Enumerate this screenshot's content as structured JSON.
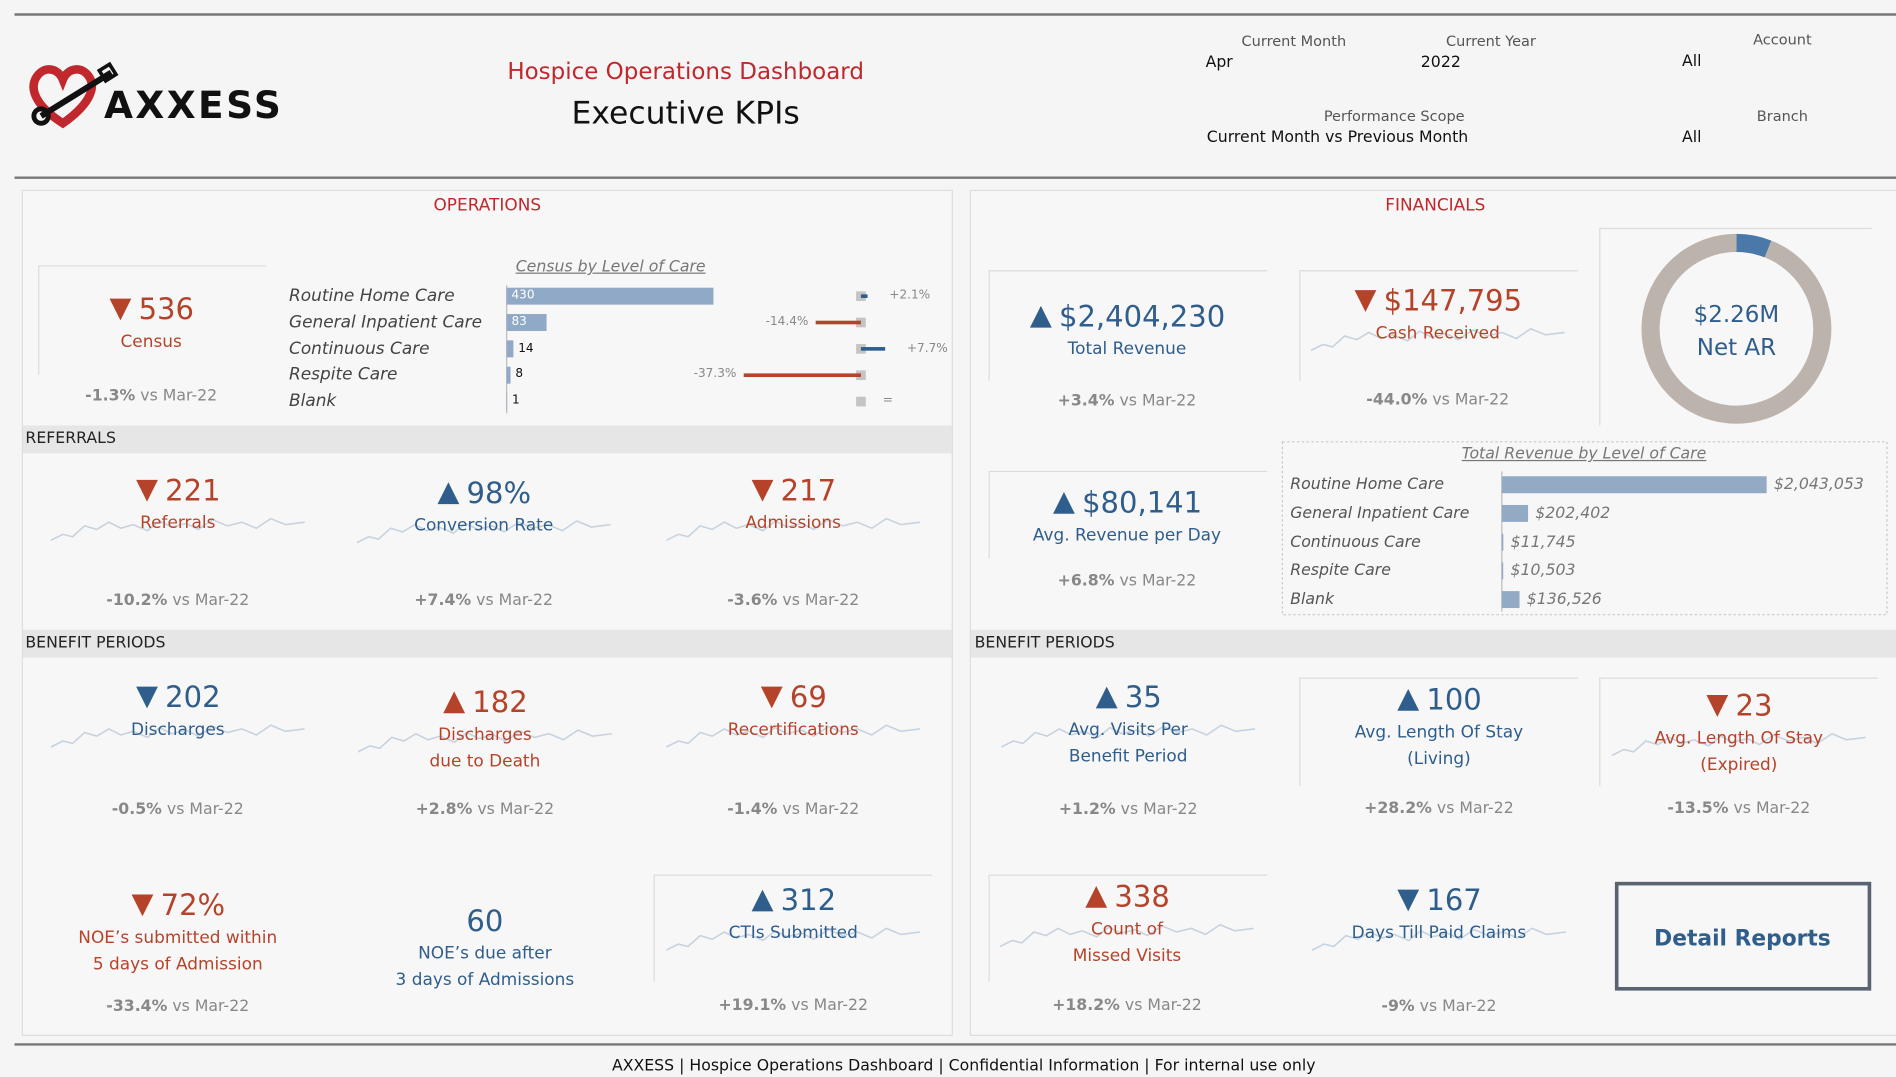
{
  "logo": "AXXESS",
  "header": {
    "title": "Hospice Operations Dashboard",
    "subtitle": "Executive KPIs"
  },
  "filters": [
    {
      "label": "Current Month",
      "value": "Apr"
    },
    {
      "label": "Current Year",
      "value": "2022"
    },
    {
      "label": "Account",
      "value": "All"
    },
    {
      "label": "Performance Scope",
      "value": "Current Month vs Previous Month"
    },
    {
      "label": "Branch",
      "value": "All"
    }
  ],
  "panels": [
    "OPERATIONS",
    "FINANCIALS"
  ],
  "sections": [
    "REFERRALS",
    "BENEFIT PERIODS",
    "BENEFIT PERIODS"
  ],
  "comparison": "vs Mar-22",
  "kpis": [
    {
      "value": "536",
      "direction": "down",
      "color": "#b5432a",
      "label": [
        "Census"
      ],
      "change": "-1.3%"
    },
    {
      "value": "221",
      "direction": "down",
      "color": "#b5432a",
      "label": [
        "Referrals"
      ],
      "change": "-10.2%"
    },
    {
      "value": "98%",
      "direction": "up",
      "color": "#2f5d8c",
      "label": [
        "Conversion Rate"
      ],
      "change": "+7.4%"
    },
    {
      "value": "217",
      "direction": "down",
      "color": "#b5432a",
      "label": [
        "Admissions"
      ],
      "change": "-3.6%"
    },
    {
      "value": "202",
      "direction": "down",
      "color": "#2f5d8c",
      "label": [
        "Discharges"
      ],
      "change": "-0.5%"
    },
    {
      "value": "182",
      "direction": "up",
      "color": "#b5432a",
      "label": [
        "Discharges",
        "due to Death"
      ],
      "change": "+2.8%"
    },
    {
      "value": "69",
      "direction": "down",
      "color": "#b5432a",
      "label": [
        "Recertifications"
      ],
      "change": "-1.4%"
    },
    {
      "value": "72%",
      "direction": "down",
      "color": "#b5432a",
      "label": [
        "NOE’s submitted within",
        "5 days of Admission"
      ],
      "change": "-33.4%"
    },
    {
      "value": "60",
      "color": "#2f5d8c",
      "label": [
        "NOE’s due after",
        "3 days of Admissions"
      ]
    },
    {
      "value": "312",
      "direction": "up",
      "color": "#2f5d8c",
      "label": [
        "CTIs Submitted"
      ],
      "change": "+19.1%"
    },
    {
      "value": "$2,404,230",
      "direction": "up",
      "color": "#2f5d8c",
      "label": [
        "Total Revenue"
      ],
      "change": "+3.4%"
    },
    {
      "value": "$147,795",
      "direction": "down",
      "color": "#b5432a",
      "label": [
        "Cash Received"
      ],
      "change": "-44.0%"
    },
    {
      "value": "$80,141",
      "direction": "up",
      "color": "#2f5d8c",
      "label": [
        "Avg. Revenue per Day"
      ],
      "change": "+6.8%"
    },
    {
      "value": "35",
      "direction": "up",
      "color": "#2f5d8c",
      "label": [
        "Avg. Visits Per",
        "Benefit Period"
      ],
      "change": "+1.2%"
    },
    {
      "value": "100",
      "direction": "up",
      "color": "#2f5d8c",
      "label": [
        "Avg. Length Of Stay",
        "(Living)"
      ],
      "change": "+28.2%"
    },
    {
      "value": "23",
      "direction": "down",
      "color": "#b5432a",
      "label": [
        "Avg. Length Of Stay",
        "(Expired)"
      ],
      "change": "-13.5%"
    },
    {
      "value": "338",
      "direction": "up",
      "color": "#b5432a",
      "label": [
        "Count of",
        "Missed Visits"
      ],
      "change": "+18.2%"
    },
    {
      "value": "167",
      "direction": "down",
      "color": "#2f5d8c",
      "label": [
        "Days Till Paid Claims"
      ],
      "change": "-9%"
    }
  ],
  "census_chart": {
    "title": "Census by Level of Care",
    "categories": [
      "Routine Home Care",
      "General Inpatient Care",
      "Continuous Care",
      "Respite Care",
      "Blank"
    ],
    "values": [
      430,
      83,
      14,
      8,
      1
    ],
    "color": "#8fa9c6",
    "changes": [
      2.1,
      -14.4,
      7.7,
      -37.3,
      0
    ],
    "change_labels": [
      "+2.1%",
      "-14.4%",
      "+7.7%",
      "-37.3%",
      "="
    ]
  },
  "revenue_chart": {
    "title": "Total Revenue by Level of Care",
    "categories": [
      "Routine Home Care",
      "General Inpatient Care",
      "Continuous Care",
      "Respite Care",
      "Blank"
    ],
    "values": [
      2043053,
      202402,
      11745,
      10503,
      136526
    ],
    "value_labels": [
      "$2,043,053",
      "$202,402",
      "$11,745",
      "$10,503",
      "$136,526"
    ],
    "color": "#93aac4"
  },
  "net_ar": {
    "value": "$2.26M",
    "label": "Net AR",
    "segments": [
      6,
      94
    ],
    "colors": [
      "#4a78a8",
      "#bdb3ad"
    ]
  },
  "button": "Detail Reports",
  "footer": "AXXESS | Hospice Operations Dashboard | Confidential Information | For internal use only"
}
